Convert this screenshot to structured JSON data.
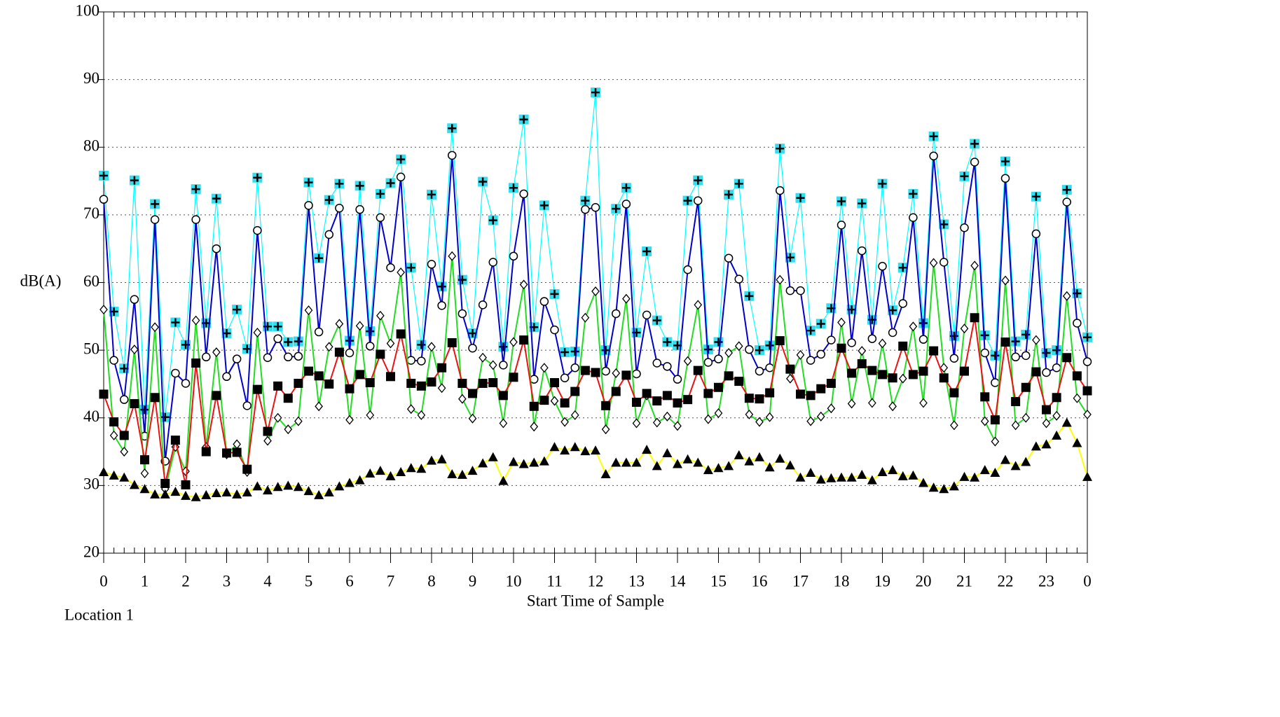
{
  "chart_data": {
    "type": "line",
    "y_label": "dB(A)",
    "x_label": "Start Time of Sample",
    "annotation": "Location 1",
    "xlim": [
      0,
      24
    ],
    "ylim": [
      20,
      100
    ],
    "xticks": [
      0,
      1,
      2,
      3,
      4,
      5,
      6,
      7,
      8,
      9,
      10,
      11,
      12,
      13,
      14,
      15,
      16,
      17,
      18,
      19,
      20,
      21,
      22,
      23,
      {
        "value": 24,
        "label": "0"
      }
    ],
    "yticks": [
      20,
      30,
      40,
      50,
      60,
      70,
      80,
      90,
      100
    ],
    "grid": true,
    "x": [
      0,
      0.25,
      0.5,
      0.75,
      1,
      1.25,
      1.5,
      1.75,
      2,
      2.25,
      2.5,
      2.75,
      3,
      3.25,
      3.5,
      3.75,
      4,
      4.25,
      4.5,
      4.75,
      5,
      5.25,
      5.5,
      5.75,
      6,
      6.25,
      6.5,
      6.75,
      7,
      7.25,
      7.5,
      7.75,
      8,
      8.25,
      8.5,
      8.75,
      9,
      9.25,
      9.5,
      9.75,
      10,
      10.25,
      10.5,
      10.75,
      11,
      11.25,
      11.5,
      11.75,
      12,
      12.25,
      12.5,
      12.75,
      13,
      13.25,
      13.5,
      13.75,
      14,
      14.25,
      14.5,
      14.75,
      15,
      15.25,
      15.5,
      15.75,
      16,
      16.25,
      16.5,
      16.75,
      17,
      17.25,
      17.5,
      17.75,
      18,
      18.25,
      18.5,
      18.75,
      19,
      19.25,
      19.5,
      19.75,
      20,
      20.25,
      20.5,
      20.75,
      21,
      21.25,
      21.5,
      21.75,
      22,
      22.25,
      22.5,
      22.75,
      23,
      23.25,
      23.5,
      23.75,
      24
    ],
    "series": [
      {
        "color": "#00ffff",
        "marker": "plus-square",
        "values": [
          75.8,
          55.7,
          47.3,
          75.1,
          41.2,
          71.6,
          40.1,
          54.1,
          50.8,
          73.8,
          54.0,
          72.4,
          52.5,
          56.0,
          50.2,
          75.5,
          53.5,
          53.5,
          51.2,
          51.3,
          74.8,
          63.6,
          72.2,
          74.6,
          51.4,
          74.3,
          52.8,
          73.1,
          74.7,
          78.2,
          62.2,
          50.8,
          73.0,
          59.4,
          82.8,
          60.4,
          52.5,
          74.9,
          69.2,
          50.5,
          74.0,
          84.1,
          53.4,
          71.4,
          58.3,
          49.7,
          49.8,
          72.1,
          88.1,
          50.0,
          70.9,
          74.0,
          52.6,
          64.6,
          54.4,
          51.2,
          50.7,
          72.1,
          75.1,
          50.1,
          51.2,
          73.0,
          74.6,
          58.0,
          50.0,
          50.7,
          79.8,
          63.7,
          72.5,
          52.9,
          53.9,
          56.2,
          72.0,
          56.0,
          71.7,
          54.5,
          74.6,
          55.9,
          62.2,
          73.1,
          54.0,
          81.6,
          68.6,
          52.1,
          75.7,
          80.5,
          52.2,
          49.2,
          77.9,
          51.3,
          52.3,
          72.7,
          49.6,
          50.0,
          73.7,
          58.4,
          51.9
        ]
      },
      {
        "color": "#0000cc",
        "marker": "circle",
        "values": [
          72.3,
          48.5,
          42.7,
          57.5,
          37.3,
          69.3,
          33.6,
          46.6,
          45.1,
          69.3,
          49.0,
          65.0,
          46.1,
          48.7,
          41.8,
          67.7,
          48.9,
          51.7,
          49.0,
          49.1,
          71.4,
          52.7,
          67.1,
          71.0,
          49.6,
          70.8,
          50.6,
          69.6,
          62.2,
          75.6,
          48.5,
          48.4,
          62.7,
          56.6,
          78.8,
          55.4,
          50.3,
          56.7,
          63.0,
          47.8,
          63.9,
          73.1,
          45.7,
          57.2,
          53.0,
          45.9,
          47.4,
          70.8,
          71.1,
          46.9,
          55.4,
          71.6,
          46.5,
          55.2,
          48.1,
          47.6,
          45.7,
          61.9,
          72.1,
          48.2,
          48.7,
          63.6,
          60.5,
          50.1,
          46.9,
          47.4,
          73.6,
          58.8,
          58.8,
          48.5,
          49.4,
          51.5,
          68.5,
          51.1,
          64.7,
          51.7,
          62.4,
          52.6,
          56.9,
          69.6,
          51.6,
          78.7,
          63.0,
          48.8,
          68.1,
          77.8,
          49.6,
          45.2,
          75.4,
          49.0,
          49.2,
          67.2,
          46.7,
          47.4,
          71.9,
          54.0,
          48.3
        ]
      },
      {
        "color": "#22dd22",
        "marker": "diamond",
        "values": [
          56.0,
          37.4,
          35.0,
          50.1,
          31.8,
          53.4,
          29.5,
          35.7,
          32.1,
          54.4,
          35.7,
          49.7,
          34.6,
          36.1,
          32.0,
          52.6,
          36.6,
          40.0,
          38.3,
          39.5,
          55.9,
          41.7,
          50.5,
          53.9,
          39.7,
          53.6,
          40.4,
          55.1,
          51.0,
          61.5,
          41.3,
          40.4,
          50.5,
          44.4,
          63.9,
          42.8,
          39.9,
          48.9,
          47.8,
          39.2,
          51.2,
          59.7,
          38.7,
          47.4,
          42.5,
          39.4,
          40.4,
          54.8,
          58.7,
          38.3,
          46.6,
          57.6,
          39.2,
          43.3,
          39.3,
          40.2,
          38.8,
          48.4,
          56.7,
          39.8,
          40.7,
          49.6,
          50.6,
          40.5,
          39.4,
          40.1,
          60.4,
          45.8,
          49.3,
          39.5,
          40.2,
          41.4,
          54.1,
          42.1,
          49.9,
          42.2,
          51.0,
          41.7,
          45.8,
          53.5,
          42.2,
          62.9,
          47.4,
          38.9,
          53.2,
          62.5,
          39.5,
          36.5,
          60.3,
          38.9,
          40.0,
          51.5,
          39.2,
          40.3,
          58.0,
          42.9,
          40.5
        ]
      },
      {
        "color": "#ee1111",
        "marker": "square",
        "values": [
          43.5,
          39.4,
          37.4,
          42.1,
          33.8,
          43.0,
          30.3,
          36.7,
          30.1,
          48.1,
          35.0,
          43.3,
          34.8,
          34.9,
          32.4,
          44.2,
          38.0,
          44.7,
          42.9,
          45.1,
          46.9,
          46.2,
          45.0,
          49.7,
          44.3,
          46.4,
          45.2,
          49.4,
          46.1,
          52.4,
          45.1,
          44.7,
          45.3,
          47.4,
          51.1,
          45.1,
          43.6,
          45.1,
          45.2,
          43.3,
          46.0,
          51.5,
          41.7,
          42.6,
          45.2,
          42.2,
          43.9,
          47.0,
          46.7,
          41.8,
          43.9,
          46.3,
          42.3,
          43.6,
          42.5,
          43.3,
          42.2,
          42.7,
          47.0,
          43.6,
          44.5,
          46.2,
          45.4,
          42.9,
          42.8,
          43.7,
          51.4,
          47.2,
          43.5,
          43.3,
          44.3,
          45.1,
          50.3,
          46.6,
          48.0,
          47.0,
          46.4,
          45.9,
          50.6,
          46.4,
          46.9,
          49.9,
          45.9,
          43.7,
          46.9,
          54.8,
          43.1,
          39.7,
          51.2,
          42.4,
          44.5,
          46.8,
          41.2,
          43.0,
          48.9,
          46.2,
          44.0
        ]
      },
      {
        "color": "#ffff00",
        "marker": "triangle",
        "values": [
          32.0,
          31.5,
          31.2,
          30.1,
          29.5,
          28.7,
          28.7,
          29.1,
          28.5,
          28.3,
          28.6,
          28.9,
          29.0,
          28.7,
          29.0,
          29.9,
          29.3,
          29.8,
          30.0,
          29.8,
          29.2,
          28.6,
          29.0,
          29.9,
          30.4,
          30.8,
          31.8,
          32.2,
          31.4,
          32.0,
          32.6,
          32.5,
          33.7,
          33.9,
          31.7,
          31.6,
          32.2,
          33.3,
          34.2,
          30.7,
          33.5,
          33.2,
          33.4,
          33.6,
          35.7,
          35.2,
          35.7,
          35.1,
          35.2,
          31.7,
          33.4,
          33.4,
          33.4,
          35.3,
          32.9,
          34.8,
          33.2,
          33.9,
          33.4,
          32.3,
          32.6,
          32.9,
          34.5,
          33.6,
          34.2,
          32.7,
          34.0,
          33.0,
          31.2,
          31.9,
          30.9,
          31.1,
          31.2,
          31.2,
          31.6,
          30.8,
          32.0,
          32.3,
          31.4,
          31.5,
          30.4,
          29.7,
          29.5,
          29.9,
          31.3,
          31.2,
          32.3,
          31.9,
          33.8,
          32.9,
          33.5,
          35.8,
          36.1,
          37.4,
          39.3,
          36.3,
          31.3
        ]
      }
    ]
  }
}
